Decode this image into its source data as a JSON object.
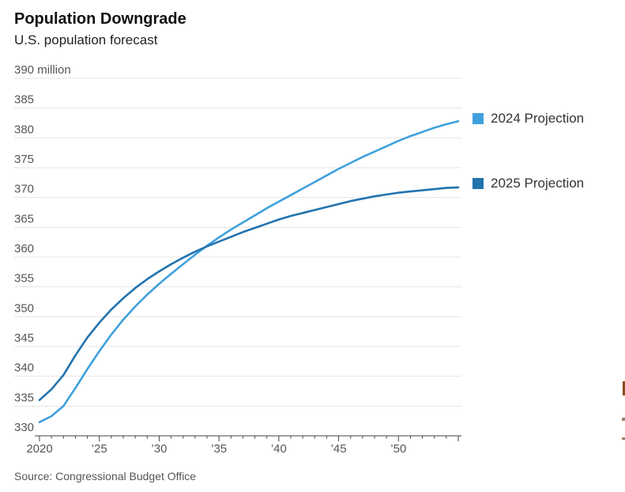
{
  "header": {
    "title": "Population Downgrade",
    "subtitle": "U.S. population forecast"
  },
  "source_note": "Source: Congressional Budget Office",
  "legend": [
    {
      "label": "2024 Projection",
      "color": "#3fa0dc"
    },
    {
      "label": "2025 Projection",
      "color": "#2273ae"
    }
  ],
  "colors": {
    "series_2024": "#3fa0dc",
    "series_2025": "#2273ae",
    "gridline": "#e4e4e4",
    "axis_line": "#444444",
    "axis_label": "#555555"
  },
  "artifacts": {
    "edge_fragment_bar_color": "#8a4a1c",
    "edge_fragment_dot_color": "#9a8270"
  },
  "chart_data": {
    "type": "line",
    "title": "Population Downgrade",
    "subtitle": "U.S. population forecast",
    "xlabel": "",
    "ylabel": "million",
    "xlim": [
      2020,
      2055
    ],
    "ylim": [
      330,
      390
    ],
    "grid": true,
    "legend_position": "right",
    "y_ticks": [
      {
        "value": 390,
        "label": "390 million"
      },
      {
        "value": 385,
        "label": "385"
      },
      {
        "value": 380,
        "label": "380"
      },
      {
        "value": 375,
        "label": "375"
      },
      {
        "value": 370,
        "label": "370"
      },
      {
        "value": 365,
        "label": "365"
      },
      {
        "value": 360,
        "label": "360"
      },
      {
        "value": 355,
        "label": "355"
      },
      {
        "value": 350,
        "label": "350"
      },
      {
        "value": 345,
        "label": "345"
      },
      {
        "value": 340,
        "label": "340"
      },
      {
        "value": 335,
        "label": "335"
      },
      {
        "value": 330,
        "label": "330"
      }
    ],
    "x_ticks": [
      {
        "value": 2020,
        "label": "2020"
      },
      {
        "value": 2025,
        "label": "’25"
      },
      {
        "value": 2030,
        "label": "’30"
      },
      {
        "value": 2035,
        "label": "’35"
      },
      {
        "value": 2040,
        "label": "’40"
      },
      {
        "value": 2045,
        "label": "’45"
      },
      {
        "value": 2050,
        "label": "’50"
      }
    ],
    "x": [
      2020,
      2021,
      2022,
      2023,
      2024,
      2025,
      2026,
      2027,
      2028,
      2029,
      2030,
      2031,
      2032,
      2033,
      2034,
      2035,
      2036,
      2037,
      2038,
      2039,
      2040,
      2041,
      2042,
      2043,
      2044,
      2045,
      2046,
      2047,
      2048,
      2049,
      2050,
      2051,
      2052,
      2053,
      2054,
      2055
    ],
    "series": [
      {
        "name": "2024 Projection",
        "color": "#3fa0dc",
        "values": [
          332.3,
          333.3,
          335.0,
          338.0,
          341.2,
          344.2,
          347.0,
          349.5,
          351.7,
          353.7,
          355.5,
          357.2,
          358.8,
          360.4,
          361.9,
          363.3,
          364.6,
          365.8,
          367.0,
          368.2,
          369.3,
          370.4,
          371.5,
          372.6,
          373.7,
          374.8,
          375.8,
          376.8,
          377.7,
          378.6,
          379.5,
          380.3,
          381.0,
          381.7,
          382.3,
          382.8
        ]
      },
      {
        "name": "2025 Projection",
        "color": "#2273ae",
        "values": [
          336.0,
          337.8,
          340.2,
          343.5,
          346.5,
          349.0,
          351.2,
          353.1,
          354.8,
          356.3,
          357.6,
          358.8,
          359.9,
          360.9,
          361.8,
          362.6,
          363.4,
          364.2,
          364.9,
          365.6,
          366.3,
          366.9,
          367.4,
          367.9,
          368.4,
          368.9,
          369.4,
          369.8,
          370.2,
          370.5,
          370.8,
          371.0,
          371.2,
          371.4,
          371.6,
          371.7
        ]
      }
    ]
  }
}
